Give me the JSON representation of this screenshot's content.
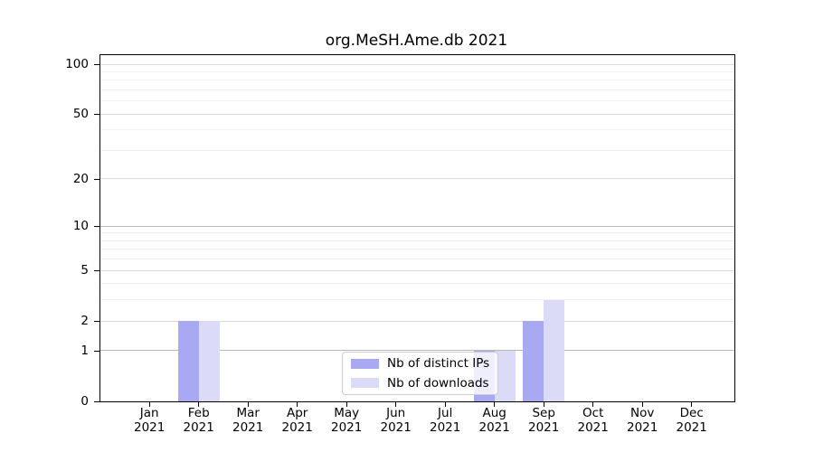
{
  "title": "org.MeSH.Ame.db 2021",
  "legend": {
    "items": [
      {
        "label": "Nb of distinct IPs",
        "series_key": "ips"
      },
      {
        "label": "Nb of downloads",
        "series_key": "downloads"
      }
    ]
  },
  "chart_data": {
    "type": "bar",
    "title": "org.MeSH.Ame.db 2021",
    "categories": [
      "Jan",
      "Feb",
      "Mar",
      "Apr",
      "May",
      "Jun",
      "Jul",
      "Aug",
      "Sep",
      "Oct",
      "Nov",
      "Dec"
    ],
    "year": "2021",
    "series": [
      {
        "name": "Nb of distinct IPs",
        "color": "#a9a9f3",
        "values": [
          0,
          2,
          0,
          0,
          0,
          0,
          0,
          1,
          2,
          0,
          0,
          0
        ]
      },
      {
        "name": "Nb of downloads",
        "color": "#dbdbf8",
        "values": [
          0,
          2,
          0,
          0,
          0,
          0,
          0,
          1,
          3,
          0,
          0,
          0
        ]
      }
    ],
    "yscale": "log1p",
    "ylim": [
      0,
      100
    ],
    "y_major_ticks": [
      0,
      1,
      2,
      5,
      10,
      20,
      50,
      100
    ],
    "y_minor_gridlines": [
      3,
      4,
      6,
      7,
      8,
      9,
      30,
      40,
      60,
      70,
      80,
      90
    ],
    "grid": true,
    "legend_position": "inside-bottom-center",
    "colors": {
      "axis": "#000000",
      "grid_strong": "#b8b8b8",
      "grid_major": "#d9d9d9",
      "grid_minor": "#efefef"
    }
  }
}
